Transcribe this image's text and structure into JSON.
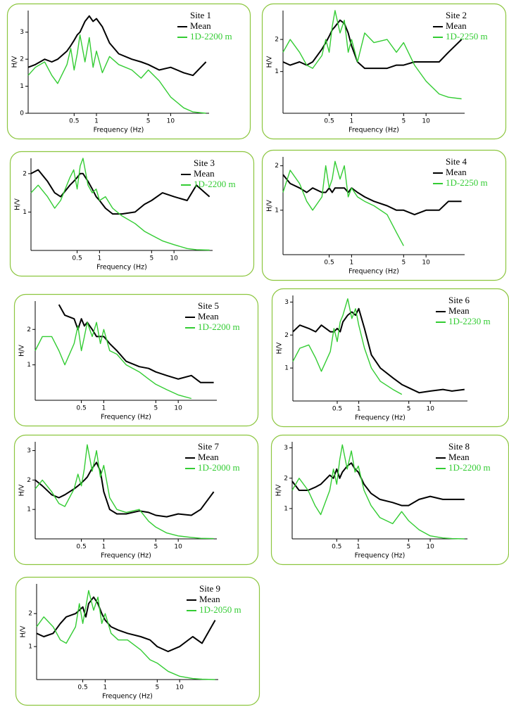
{
  "chart_data": [
    {
      "type": "line",
      "title": "Site 1",
      "x_label": "Frequency (Hz)",
      "y_label": "H/V",
      "x_scale": "log",
      "x": [
        0.12,
        0.15,
        0.2,
        0.25,
        0.3,
        0.4,
        0.45,
        0.5,
        0.55,
        0.6,
        0.7,
        0.8,
        0.9,
        1,
        1.2,
        1.5,
        2,
        3,
        4,
        5,
        7,
        10,
        15,
        20,
        30
      ],
      "xlim": [
        0.12,
        33
      ],
      "xticks": [
        0.5,
        1,
        5,
        10
      ],
      "ylim": [
        0,
        3.8
      ],
      "yticks": [
        0,
        1,
        2,
        3
      ],
      "series": [
        {
          "name": "Mean",
          "color": "#000000",
          "values": [
            1.7,
            1.8,
            2.0,
            1.9,
            2.0,
            2.3,
            2.5,
            2.7,
            2.9,
            3.0,
            3.4,
            3.6,
            3.4,
            3.5,
            3.2,
            2.6,
            2.2,
            2.0,
            1.9,
            1.8,
            1.6,
            1.7,
            1.5,
            1.4,
            1.9
          ]
        },
        {
          "name": "1D-2200 m",
          "color": "#33cc33",
          "values": [
            1.4,
            1.7,
            1.9,
            1.4,
            1.1,
            1.8,
            2.4,
            1.6,
            2.2,
            2.9,
            1.9,
            2.8,
            1.7,
            2.3,
            1.5,
            2.1,
            1.8,
            1.6,
            1.3,
            1.6,
            1.2,
            0.6,
            0.2,
            0.05,
            0.0
          ]
        }
      ]
    },
    {
      "type": "line",
      "title": "Site 2",
      "x_label": "Frequency (Hz)",
      "y_label": "H/V",
      "x_scale": "log",
      "x": [
        0.12,
        0.15,
        0.2,
        0.25,
        0.3,
        0.4,
        0.45,
        0.5,
        0.55,
        0.6,
        0.7,
        0.8,
        0.9,
        1,
        1.2,
        1.5,
        2,
        3,
        4,
        5,
        7,
        10,
        15,
        20,
        30
      ],
      "xlim": [
        0.12,
        33
      ],
      "xticks": [
        0.5,
        1,
        5,
        10
      ],
      "ylim": [
        -0.3,
        2.9
      ],
      "yticks": [
        1,
        2
      ],
      "series": [
        {
          "name": "Mean",
          "color": "#000000",
          "values": [
            1.3,
            1.2,
            1.3,
            1.2,
            1.3,
            1.7,
            1.9,
            2.1,
            2.3,
            2.4,
            2.6,
            2.5,
            2.2,
            1.8,
            1.3,
            1.1,
            1.1,
            1.1,
            1.2,
            1.2,
            1.3,
            1.3,
            1.3,
            1.6,
            2.0
          ]
        },
        {
          "name": "1D-2250 m",
          "color": "#33cc33",
          "values": [
            1.6,
            2.0,
            1.6,
            1.2,
            1.1,
            1.5,
            2.0,
            1.6,
            2.4,
            2.9,
            2.2,
            2.6,
            1.6,
            2.0,
            1.3,
            2.2,
            1.9,
            2.0,
            1.6,
            1.9,
            1.2,
            0.7,
            0.3,
            0.2,
            0.15
          ]
        }
      ]
    },
    {
      "type": "line",
      "title": "Site 3",
      "x_label": "Frequency (Hz)",
      "y_label": "H/V",
      "x_scale": "log",
      "x": [
        0.12,
        0.15,
        0.2,
        0.25,
        0.3,
        0.4,
        0.45,
        0.5,
        0.55,
        0.6,
        0.7,
        0.8,
        0.9,
        1,
        1.2,
        1.5,
        2,
        3,
        4,
        5,
        7,
        10,
        15,
        20,
        30
      ],
      "xlim": [
        0.12,
        33
      ],
      "xticks": [
        0.5,
        1,
        5,
        10
      ],
      "ylim": [
        0,
        2.4
      ],
      "yticks": [
        1,
        2
      ],
      "series": [
        {
          "name": "Mean",
          "color": "#000000",
          "values": [
            2.0,
            2.1,
            1.8,
            1.5,
            1.4,
            1.7,
            1.8,
            1.9,
            2.0,
            2.0,
            1.8,
            1.6,
            1.4,
            1.3,
            1.1,
            0.95,
            0.95,
            1.0,
            1.2,
            1.3,
            1.5,
            1.4,
            1.3,
            1.7,
            1.4
          ]
        },
        {
          "name": "1D-2200 m",
          "color": "#33cc33",
          "values": [
            1.5,
            1.7,
            1.4,
            1.1,
            1.3,
            1.9,
            2.1,
            1.6,
            2.2,
            2.4,
            1.7,
            1.5,
            1.6,
            1.3,
            1.4,
            1.1,
            0.9,
            0.7,
            0.5,
            0.4,
            0.25,
            0.15,
            0.05,
            0.02,
            0.01
          ]
        }
      ]
    },
    {
      "type": "line",
      "title": "Site 4",
      "x_label": "Frequency (Hz)",
      "y_label": "H/V",
      "x_scale": "log",
      "x": [
        0.12,
        0.15,
        0.2,
        0.25,
        0.3,
        0.4,
        0.45,
        0.5,
        0.55,
        0.6,
        0.7,
        0.8,
        0.9,
        1,
        1.2,
        1.5,
        2,
        3,
        4,
        5,
        7,
        10,
        15,
        20,
        30
      ],
      "xlim": [
        0.12,
        33
      ],
      "xticks": [
        0.5,
        1,
        5,
        10
      ],
      "ylim": [
        0,
        2.2
      ],
      "yticks": [
        1,
        2
      ],
      "series": [
        {
          "name": "Mean",
          "color": "#000000",
          "values": [
            1.8,
            1.6,
            1.5,
            1.4,
            1.5,
            1.4,
            1.4,
            1.5,
            1.4,
            1.5,
            1.5,
            1.5,
            1.4,
            1.5,
            1.4,
            1.3,
            1.2,
            1.1,
            1.0,
            1.0,
            0.9,
            1.0,
            1.0,
            1.2,
            1.2
          ]
        },
        {
          "name": "1D-2250 m",
          "color": "#33cc33",
          "values": [
            1.4,
            1.9,
            1.6,
            1.2,
            1.0,
            1.3,
            2.0,
            1.5,
            1.7,
            2.1,
            1.7,
            2.0,
            1.3,
            1.5,
            1.3,
            1.2,
            1.1,
            0.9,
            0.5,
            0.2,
            null,
            null,
            null,
            null,
            null
          ]
        }
      ]
    },
    {
      "type": "line",
      "title": "Site 5",
      "x_label": "Frequency (Hz)",
      "y_label": "H/V",
      "x_scale": "log",
      "x": [
        0.12,
        0.15,
        0.2,
        0.25,
        0.3,
        0.4,
        0.45,
        0.5,
        0.55,
        0.6,
        0.7,
        0.8,
        0.9,
        1,
        1.2,
        1.5,
        2,
        3,
        4,
        5,
        7,
        10,
        15,
        20,
        30
      ],
      "xlim": [
        0.12,
        33
      ],
      "xticks": [
        0.5,
        1,
        5,
        10
      ],
      "ylim": [
        0,
        2.8
      ],
      "yticks": [
        1,
        2
      ],
      "series": [
        {
          "name": "Mean",
          "color": "#000000",
          "values": [
            null,
            null,
            null,
            2.7,
            2.4,
            2.3,
            2.0,
            2.3,
            2.1,
            2.2,
            2.0,
            1.8,
            1.8,
            1.8,
            1.6,
            1.4,
            1.1,
            0.95,
            0.9,
            0.8,
            0.7,
            0.6,
            0.7,
            0.5,
            0.5
          ]
        },
        {
          "name": "1D-2200 m",
          "color": "#33cc33",
          "values": [
            1.4,
            1.8,
            1.8,
            1.4,
            1.0,
            1.6,
            2.1,
            1.4,
            1.8,
            2.2,
            1.8,
            2.2,
            1.6,
            2.0,
            1.4,
            1.3,
            1.0,
            0.8,
            0.6,
            0.45,
            0.3,
            0.15,
            0.05,
            null,
            null
          ]
        }
      ]
    },
    {
      "type": "line",
      "title": "Site 6",
      "x_label": "Frequency (Hz)",
      "y_label": "H/V",
      "x_scale": "log",
      "x": [
        0.12,
        0.15,
        0.2,
        0.25,
        0.3,
        0.4,
        0.45,
        0.5,
        0.55,
        0.6,
        0.7,
        0.8,
        0.9,
        1,
        1.2,
        1.5,
        2,
        3,
        4,
        5,
        7,
        10,
        15,
        20,
        30
      ],
      "xlim": [
        0.12,
        33
      ],
      "xticks": [
        0.5,
        1,
        5,
        10
      ],
      "ylim": [
        0,
        3.2
      ],
      "yticks": [
        1,
        2,
        3
      ],
      "series": [
        {
          "name": "Mean",
          "color": "#000000",
          "values": [
            2.1,
            2.3,
            2.2,
            2.1,
            2.3,
            2.1,
            2.1,
            2.2,
            2.1,
            2.4,
            2.6,
            2.7,
            2.6,
            2.8,
            2.2,
            1.4,
            1.0,
            0.7,
            0.5,
            0.4,
            0.25,
            0.3,
            0.35,
            0.3,
            0.35
          ]
        },
        {
          "name": "1D-2230 m",
          "color": "#33cc33",
          "values": [
            1.2,
            1.6,
            1.7,
            1.3,
            0.9,
            1.5,
            2.2,
            1.8,
            2.4,
            2.6,
            3.1,
            2.5,
            2.8,
            2.3,
            1.6,
            1.0,
            0.6,
            0.35,
            0.2,
            null,
            null,
            null,
            null,
            null,
            null
          ]
        }
      ]
    },
    {
      "type": "line",
      "title": "Site 7",
      "x_label": "Frequency (Hz)",
      "y_label": "H/V",
      "x_scale": "log",
      "x": [
        0.12,
        0.15,
        0.2,
        0.25,
        0.3,
        0.4,
        0.45,
        0.5,
        0.55,
        0.6,
        0.7,
        0.8,
        0.9,
        1,
        1.2,
        1.5,
        2,
        3,
        4,
        5,
        7,
        10,
        15,
        20,
        30
      ],
      "xlim": [
        0.12,
        33
      ],
      "xticks": [
        0.5,
        1,
        5,
        10
      ],
      "ylim": [
        0,
        3.3
      ],
      "yticks": [
        1,
        2,
        3
      ],
      "series": [
        {
          "name": "Mean",
          "color": "#000000",
          "values": [
            2.0,
            1.8,
            1.5,
            1.4,
            1.5,
            1.7,
            1.8,
            1.9,
            2.0,
            2.1,
            2.4,
            2.6,
            2.3,
            1.6,
            1.0,
            0.85,
            0.85,
            0.95,
            0.9,
            0.8,
            0.75,
            0.85,
            0.8,
            1.0,
            1.6
          ]
        },
        {
          "name": "1D-2000 m",
          "color": "#33cc33",
          "values": [
            1.7,
            2.0,
            1.6,
            1.2,
            1.1,
            1.7,
            2.2,
            1.8,
            2.4,
            3.2,
            2.3,
            3.0,
            2.1,
            2.5,
            1.4,
            1.0,
            0.9,
            1.0,
            0.6,
            0.4,
            0.2,
            0.1,
            0.05,
            0.02,
            0.01
          ]
        }
      ]
    },
    {
      "type": "line",
      "title": "Site 8",
      "x_label": "Frequency (Hz)",
      "y_label": "H/V",
      "x_scale": "log",
      "x": [
        0.12,
        0.15,
        0.2,
        0.25,
        0.3,
        0.4,
        0.45,
        0.5,
        0.55,
        0.6,
        0.7,
        0.8,
        0.9,
        1,
        1.2,
        1.5,
        2,
        3,
        4,
        5,
        7,
        10,
        15,
        20,
        30
      ],
      "xlim": [
        0.12,
        33
      ],
      "xticks": [
        0.5,
        1,
        5,
        10
      ],
      "ylim": [
        0,
        3.2
      ],
      "yticks": [
        1,
        2,
        3
      ],
      "series": [
        {
          "name": "Mean",
          "color": "#000000",
          "values": [
            1.9,
            1.6,
            1.6,
            1.7,
            1.8,
            2.1,
            2.0,
            2.3,
            2.0,
            2.2,
            2.4,
            2.5,
            2.3,
            2.2,
            1.8,
            1.5,
            1.3,
            1.2,
            1.1,
            1.1,
            1.3,
            1.4,
            1.3,
            1.3,
            1.3
          ]
        },
        {
          "name": "1D-2200 m",
          "color": "#33cc33",
          "values": [
            1.6,
            2.0,
            1.6,
            1.1,
            0.8,
            1.6,
            2.3,
            1.8,
            2.6,
            3.1,
            2.3,
            2.9,
            2.2,
            2.4,
            1.6,
            1.1,
            0.7,
            0.5,
            0.9,
            0.6,
            0.3,
            0.1,
            0.03,
            0.01,
            0.0
          ]
        }
      ]
    },
    {
      "type": "line",
      "title": "Site 9",
      "x_label": "Frequency (Hz)",
      "y_label": "H/V",
      "x_scale": "log",
      "x": [
        0.12,
        0.15,
        0.2,
        0.25,
        0.3,
        0.4,
        0.45,
        0.5,
        0.55,
        0.6,
        0.7,
        0.8,
        0.9,
        1,
        1.2,
        1.5,
        2,
        3,
        4,
        5,
        7,
        10,
        15,
        20,
        30
      ],
      "xlim": [
        0.12,
        33
      ],
      "xticks": [
        0.5,
        1,
        5,
        10
      ],
      "ylim": [
        0,
        2.9
      ],
      "yticks": [
        1,
        2
      ],
      "series": [
        {
          "name": "Mean",
          "color": "#000000",
          "values": [
            1.4,
            1.3,
            1.4,
            1.7,
            1.9,
            2.0,
            2.1,
            2.2,
            1.9,
            2.3,
            2.5,
            2.3,
            2.0,
            1.8,
            1.6,
            1.5,
            1.4,
            1.3,
            1.2,
            1.0,
            0.85,
            1.0,
            1.3,
            1.1,
            1.8
          ]
        },
        {
          "name": "1D-2050 m",
          "color": "#33cc33",
          "values": [
            1.6,
            1.9,
            1.6,
            1.2,
            1.1,
            1.6,
            2.3,
            1.7,
            2.2,
            2.7,
            2.1,
            2.5,
            1.7,
            2.0,
            1.4,
            1.2,
            1.2,
            0.9,
            0.6,
            0.5,
            0.25,
            0.1,
            0.03,
            0.01,
            0.0
          ]
        }
      ]
    }
  ]
}
